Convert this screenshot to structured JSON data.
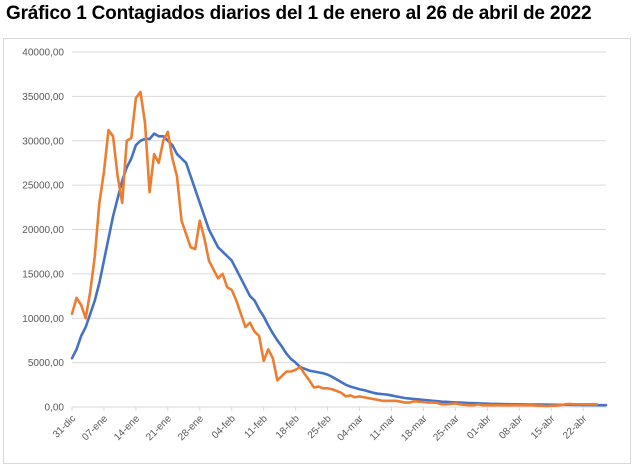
{
  "chart_data": {
    "type": "line",
    "title": "Gráfico 1 Contagiados diarios del 1 de enero al 26 de abril de 2022",
    "xlabel": "",
    "ylabel": "",
    "ylim": [
      0,
      40000
    ],
    "yticks": [
      0,
      5000,
      10000,
      15000,
      20000,
      25000,
      30000,
      35000,
      40000
    ],
    "ytick_labels": [
      "0,00",
      "5000,00",
      "10000,00",
      "15000,00",
      "20000,00",
      "25000,00",
      "30000,00",
      "35000,00",
      "40000,00"
    ],
    "xtick_labels": [
      "31-dic",
      "07-ene",
      "14-ene",
      "21-ene",
      "28-ene",
      "04-feb",
      "11-feb",
      "18-feb",
      "25-feb",
      "04-mar",
      "11-mar",
      "18-mar",
      "25-mar",
      "01-abr",
      "08-abr",
      "15-abr",
      "22-abr"
    ],
    "x_start": "31-dic",
    "grid": true,
    "legend": "none",
    "series": [
      {
        "color": "#4472c4",
        "values": [
          5500,
          6500,
          8000,
          9000,
          10500,
          12000,
          14000,
          16500,
          19000,
          21500,
          23500,
          25500,
          27000,
          28000,
          29500,
          30000,
          30200,
          30200,
          30800,
          30500,
          30500,
          30000,
          29500,
          28500,
          28000,
          27500,
          26000,
          24500,
          23000,
          21500,
          20000,
          19000,
          18000,
          17500,
          17000,
          16500,
          15500,
          14500,
          13500,
          12500,
          12000,
          11000,
          10200,
          9200,
          8300,
          7500,
          6800,
          6000,
          5400,
          5000,
          4500,
          4300,
          4100,
          4000,
          3900,
          3800,
          3650,
          3400,
          3100,
          2800,
          2500,
          2300,
          2150,
          2000,
          1900,
          1750,
          1600,
          1500,
          1450,
          1400,
          1300,
          1200,
          1100,
          1000,
          950,
          900,
          850,
          800,
          750,
          700,
          650,
          600,
          580,
          550,
          520,
          500,
          480,
          450,
          430,
          410,
          390,
          370,
          350,
          340,
          330,
          320,
          310,
          300,
          300,
          290,
          280,
          280,
          270,
          270,
          260,
          260,
          250,
          250,
          240,
          240,
          230,
          230,
          220,
          220,
          220,
          210,
          210,
          210
        ]
      },
      {
        "color": "#ed7d31",
        "values": [
          10500,
          12300,
          11500,
          10000,
          13000,
          17000,
          23000,
          26500,
          31200,
          30500,
          26000,
          23000,
          30000,
          30300,
          34800,
          35500,
          32000,
          24200,
          28500,
          27500,
          30000,
          31000,
          28000,
          26000,
          21000,
          19500,
          18000,
          17800,
          21000,
          19000,
          16500,
          15500,
          14500,
          15000,
          13500,
          13200,
          12000,
          10500,
          9000,
          9500,
          8500,
          8000,
          5200,
          6500,
          5500,
          3000,
          3500,
          4000,
          4000,
          4200,
          4500,
          3700,
          3000,
          2200,
          2300,
          2100,
          2100,
          2000,
          1800,
          1600,
          1200,
          1300,
          1100,
          1200,
          1100,
          1000,
          900,
          800,
          700,
          700,
          700,
          700,
          600,
          500,
          500,
          650,
          600,
          550,
          500,
          500,
          450,
          300,
          300,
          350,
          400,
          300,
          250,
          200,
          200,
          300,
          200,
          200,
          200,
          200,
          200,
          200,
          200,
          200,
          200,
          200,
          200,
          200,
          150,
          150,
          100,
          150,
          150,
          200,
          300,
          350,
          300,
          300,
          300,
          300,
          300,
          300
        ]
      }
    ]
  }
}
